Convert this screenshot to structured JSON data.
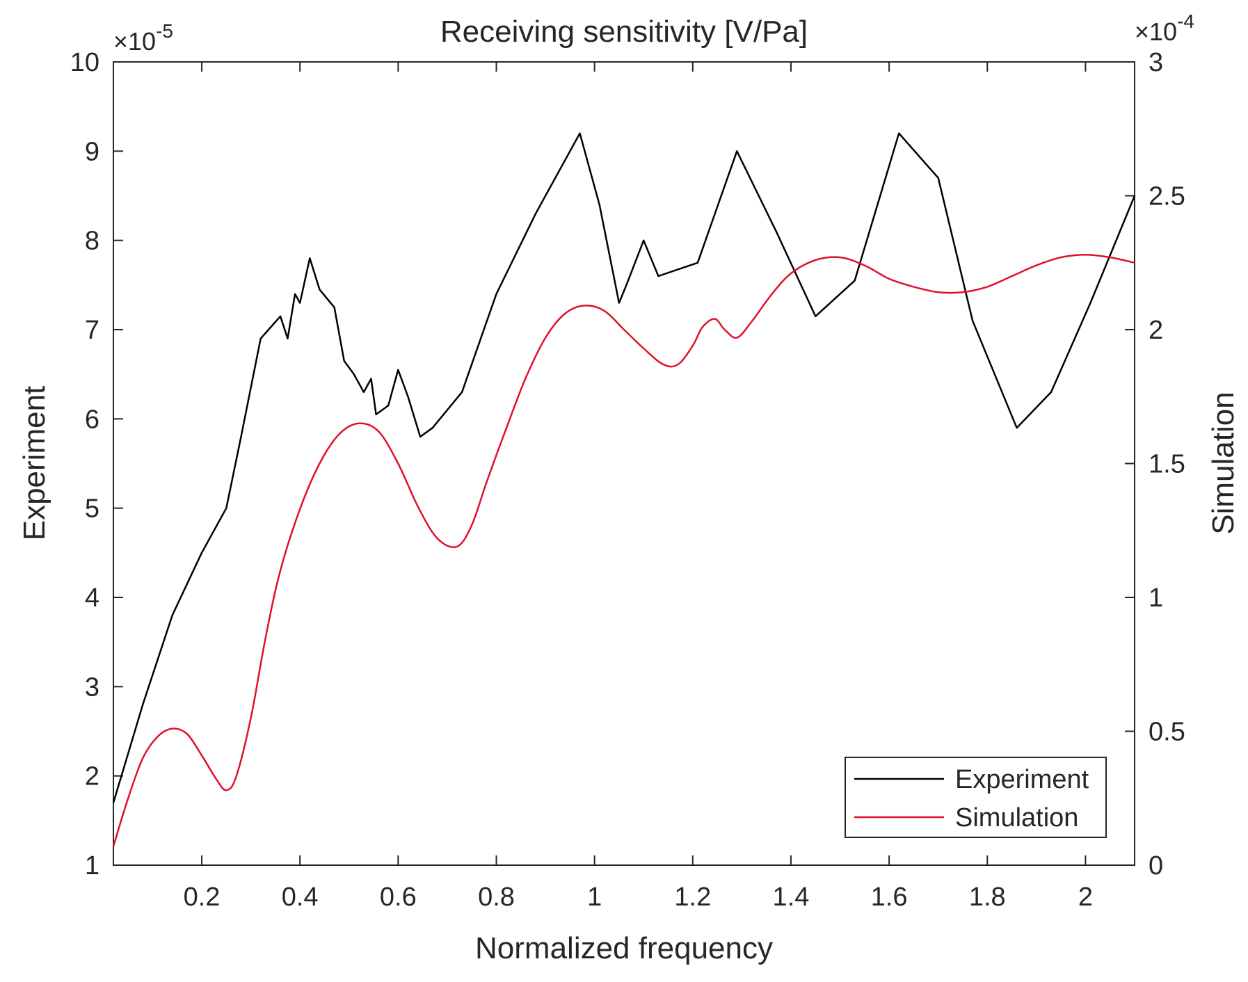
{
  "chart_data": {
    "type": "line",
    "title": "Receiving sensitivity [V/Pa]",
    "xlabel": "Normalized frequency",
    "ylabel_left": "Experiment",
    "ylabel_right": "Simulation",
    "left_multiplier": {
      "base": "×10",
      "exponent": "-5"
    },
    "right_multiplier": {
      "base": "×10",
      "exponent": "-4"
    },
    "xlim": [
      0.02,
      2.1
    ],
    "ylim_left": [
      1,
      10
    ],
    "ylim_right": [
      0,
      3
    ],
    "left_scale": 1e-05,
    "right_scale": 0.0001,
    "xticks": [
      0.2,
      0.4,
      0.6,
      0.8,
      1.0,
      1.2,
      1.4,
      1.6,
      1.8,
      2.0
    ],
    "xtick_labels": [
      "0.2",
      "0.4",
      "0.6",
      "0.8",
      "1",
      "1.2",
      "1.4",
      "1.6",
      "1.8",
      "2"
    ],
    "yticks_left": [
      1,
      2,
      3,
      4,
      5,
      6,
      7,
      8,
      9,
      10
    ],
    "ytick_labels_left": [
      "1",
      "2",
      "3",
      "4",
      "5",
      "6",
      "7",
      "8",
      "9",
      "10"
    ],
    "yticks_right": [
      0,
      0.5,
      1,
      1.5,
      2,
      2.5,
      3
    ],
    "ytick_labels_right": [
      "0",
      "0.5",
      "1",
      "1.5",
      "2",
      "2.5",
      "3"
    ],
    "legend": {
      "location": "bottom-right",
      "entries": [
        "Experiment",
        "Simulation"
      ]
    },
    "series": [
      {
        "name": "Experiment",
        "axis": "left",
        "color": "#000000",
        "x": [
          0.02,
          0.08,
          0.14,
          0.2,
          0.25,
          0.28,
          0.32,
          0.36,
          0.375,
          0.39,
          0.4,
          0.42,
          0.44,
          0.47,
          0.49,
          0.51,
          0.53,
          0.545,
          0.555,
          0.58,
          0.6,
          0.62,
          0.645,
          0.67,
          0.73,
          0.8,
          0.88,
          0.97,
          1.01,
          1.05,
          1.065,
          1.1,
          1.13,
          1.21,
          1.29,
          1.37,
          1.45,
          1.53,
          1.62,
          1.7,
          1.77,
          1.86,
          1.93,
          2.01,
          2.1
        ],
        "y": [
          1.7,
          2.8,
          3.8,
          4.5,
          5.0,
          5.8,
          6.9,
          7.15,
          6.9,
          7.4,
          7.3,
          7.8,
          7.45,
          7.25,
          6.65,
          6.5,
          6.3,
          6.45,
          6.05,
          6.15,
          6.55,
          6.25,
          5.8,
          5.9,
          6.3,
          7.4,
          8.3,
          9.2,
          8.4,
          7.3,
          7.5,
          8.0,
          7.6,
          7.75,
          9.0,
          8.1,
          7.15,
          7.55,
          9.2,
          8.7,
          7.1,
          5.9,
          6.3,
          7.3,
          8.5
        ]
      },
      {
        "name": "Simulation",
        "axis": "right",
        "color": "#e0102a",
        "x": [
          0.02,
          0.05,
          0.08,
          0.11,
          0.14,
          0.17,
          0.2,
          0.23,
          0.25,
          0.27,
          0.3,
          0.33,
          0.36,
          0.4,
          0.44,
          0.48,
          0.52,
          0.56,
          0.6,
          0.64,
          0.68,
          0.72,
          0.75,
          0.78,
          0.82,
          0.86,
          0.9,
          0.94,
          0.98,
          1.02,
          1.06,
          1.1,
          1.14,
          1.17,
          1.2,
          1.22,
          1.245,
          1.265,
          1.29,
          1.32,
          1.36,
          1.4,
          1.45,
          1.5,
          1.55,
          1.6,
          1.65,
          1.7,
          1.75,
          1.8,
          1.85,
          1.9,
          1.95,
          2.0,
          2.05,
          2.1
        ],
        "y": [
          0.07,
          0.25,
          0.4,
          0.48,
          0.51,
          0.49,
          0.41,
          0.32,
          0.28,
          0.33,
          0.55,
          0.85,
          1.1,
          1.33,
          1.5,
          1.61,
          1.65,
          1.62,
          1.5,
          1.34,
          1.22,
          1.19,
          1.27,
          1.43,
          1.63,
          1.82,
          1.97,
          2.06,
          2.09,
          2.07,
          2.0,
          1.93,
          1.87,
          1.87,
          1.94,
          2.01,
          2.04,
          2.0,
          1.97,
          2.03,
          2.13,
          2.21,
          2.26,
          2.27,
          2.24,
          2.19,
          2.16,
          2.14,
          2.14,
          2.16,
          2.2,
          2.24,
          2.27,
          2.28,
          2.27,
          2.25
        ]
      }
    ]
  }
}
